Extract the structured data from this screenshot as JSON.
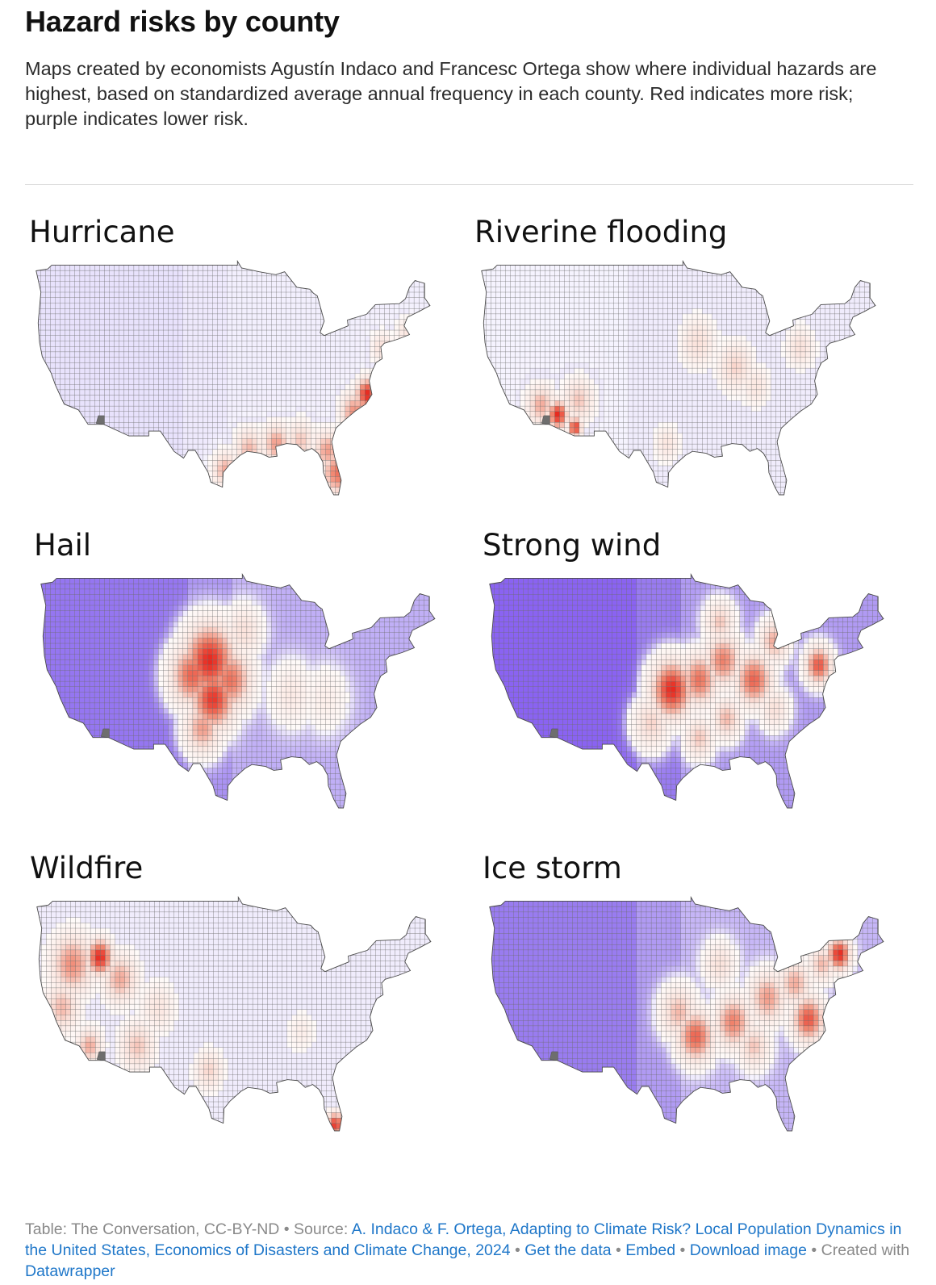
{
  "header": {
    "title": "Hazard risks by county",
    "subtitle": "Maps created by economists Agustín Indaco and Francesc Ortega show where individual hazards are highest, based on standardized average annual frequency in each county. Red indicates more risk; purple indicates lower risk."
  },
  "colors": {
    "high": "#e8281e",
    "mid_red": "#f0816a",
    "light": "#fbe3dc",
    "neutral": "#ffffff",
    "low": "#9b7ff0",
    "low_deep": "#8a63f2",
    "no_data": "#6e6e6e",
    "divider": "#dcdcdc",
    "link": "#1f77c9"
  },
  "maps": [
    {
      "title": "Hurricane",
      "base_tint": 0.12,
      "hotspots": [
        {
          "lon": -76.2,
          "lat": 35.6,
          "v": 1.0,
          "r": 1.6
        },
        {
          "lon": -78.0,
          "lat": 33.8,
          "v": 0.65,
          "r": 2.0
        },
        {
          "lon": -80.5,
          "lat": 27.5,
          "v": 0.75,
          "r": 2.2
        },
        {
          "lon": -82.0,
          "lat": 29.8,
          "v": 0.6,
          "r": 2.0
        },
        {
          "lon": -89.5,
          "lat": 30.5,
          "v": 0.6,
          "r": 2.0
        },
        {
          "lon": -93.5,
          "lat": 30.0,
          "v": 0.5,
          "r": 2.0
        },
        {
          "lon": -97.0,
          "lat": 27.8,
          "v": 0.55,
          "r": 1.8
        },
        {
          "lon": -86.0,
          "lat": 30.8,
          "v": 0.45,
          "r": 2.0
        },
        {
          "lon": -74.0,
          "lat": 40.5,
          "v": 0.35,
          "r": 1.6
        },
        {
          "lon": -70.5,
          "lat": 42.0,
          "v": 0.3,
          "r": 1.5
        }
      ]
    },
    {
      "title": "Riverine flooding",
      "base_tint": 0.05,
      "hotspots": [
        {
          "lon": -113.5,
          "lat": 33.5,
          "v": 1.0,
          "r": 1.4
        },
        {
          "lon": -111.0,
          "lat": 32.2,
          "v": 0.95,
          "r": 1.0
        },
        {
          "lon": -116.0,
          "lat": 34.5,
          "v": 0.55,
          "r": 2.0
        },
        {
          "lon": -110.5,
          "lat": 35.0,
          "v": 0.45,
          "r": 2.2
        },
        {
          "lon": -87.5,
          "lat": 38.5,
          "v": 0.4,
          "r": 2.5
        },
        {
          "lon": -93.0,
          "lat": 41.0,
          "v": 0.35,
          "r": 2.5
        },
        {
          "lon": -78.0,
          "lat": 40.5,
          "v": 0.35,
          "r": 2.0
        },
        {
          "lon": -97.5,
          "lat": 30.5,
          "v": 0.3,
          "r": 1.8
        },
        {
          "lon": -84.5,
          "lat": 36.5,
          "v": 0.3,
          "r": 2.0
        }
      ]
    },
    {
      "title": "Hail",
      "base_tint": 0.6,
      "hotspots": [
        {
          "lon": -100.0,
          "lat": 40.5,
          "v": 1.0,
          "r": 3.5
        },
        {
          "lon": -99.5,
          "lat": 36.5,
          "v": 0.95,
          "r": 3.0
        },
        {
          "lon": -102.5,
          "lat": 39.0,
          "v": 0.8,
          "r": 3.0
        },
        {
          "lon": -97.0,
          "lat": 38.5,
          "v": 0.75,
          "r": 3.0
        },
        {
          "lon": -101.0,
          "lat": 33.5,
          "v": 0.6,
          "r": 2.5
        },
        {
          "lon": -88.0,
          "lat": 37.0,
          "v": 0.25,
          "r": 3.0
        },
        {
          "lon": -83.0,
          "lat": 36.5,
          "v": 0.2,
          "r": 3.0
        },
        {
          "lon": -95.0,
          "lat": 43.5,
          "v": 0.35,
          "r": 2.5
        }
      ]
    },
    {
      "title": "Strong wind",
      "base_tint": 0.75,
      "hotspots": [
        {
          "lon": -98.0,
          "lat": 37.5,
          "v": 1.0,
          "r": 2.8
        },
        {
          "lon": -94.0,
          "lat": 38.5,
          "v": 0.75,
          "r": 2.5
        },
        {
          "lon": -90.5,
          "lat": 40.5,
          "v": 0.7,
          "r": 2.5
        },
        {
          "lon": -86.0,
          "lat": 38.5,
          "v": 0.8,
          "r": 2.5
        },
        {
          "lon": -83.0,
          "lat": 42.5,
          "v": 0.55,
          "r": 2.0
        },
        {
          "lon": -76.5,
          "lat": 40.0,
          "v": 0.85,
          "r": 1.8
        },
        {
          "lon": -90.0,
          "lat": 34.5,
          "v": 0.5,
          "r": 2.0
        },
        {
          "lon": -94.0,
          "lat": 32.5,
          "v": 0.45,
          "r": 2.0
        },
        {
          "lon": -83.0,
          "lat": 35.5,
          "v": 0.35,
          "r": 2.0
        },
        {
          "lon": -91.0,
          "lat": 44.5,
          "v": 0.45,
          "r": 2.0
        },
        {
          "lon": -101.0,
          "lat": 34.0,
          "v": 0.4,
          "r": 2.5
        }
      ]
    },
    {
      "title": "Wildfire",
      "base_tint": 0.02,
      "hotspots": [
        {
          "lon": -115.5,
          "lat": 43.2,
          "v": 1.0,
          "r": 1.8
        },
        {
          "lon": -119.5,
          "lat": 42.5,
          "v": 0.65,
          "r": 3.0
        },
        {
          "lon": -112.5,
          "lat": 41.0,
          "v": 0.55,
          "r": 2.5
        },
        {
          "lon": -121.0,
          "lat": 38.0,
          "v": 0.5,
          "r": 2.5
        },
        {
          "lon": -117.0,
          "lat": 34.0,
          "v": 0.55,
          "r": 1.8
        },
        {
          "lon": -110.0,
          "lat": 34.0,
          "v": 0.45,
          "r": 2.5
        },
        {
          "lon": -99.5,
          "lat": 31.5,
          "v": 0.4,
          "r": 2.0
        },
        {
          "lon": -81.0,
          "lat": 25.8,
          "v": 0.95,
          "r": 1.3
        },
        {
          "lon": -107.0,
          "lat": 38.0,
          "v": 0.3,
          "r": 2.5
        },
        {
          "lon": -86.0,
          "lat": 35.5,
          "v": 0.2,
          "r": 2.0
        }
      ]
    },
    {
      "title": "Ice storm",
      "base_tint": 0.55,
      "hotspots": [
        {
          "lon": -73.5,
          "lat": 43.5,
          "v": 1.0,
          "r": 1.6
        },
        {
          "lon": -78.0,
          "lat": 36.8,
          "v": 0.85,
          "r": 2.2
        },
        {
          "lon": -94.5,
          "lat": 35.0,
          "v": 0.8,
          "r": 2.5
        },
        {
          "lon": -89.0,
          "lat": 36.5,
          "v": 0.7,
          "r": 2.5
        },
        {
          "lon": -84.0,
          "lat": 39.0,
          "v": 0.6,
          "r": 2.5
        },
        {
          "lon": -80.0,
          "lat": 40.5,
          "v": 0.55,
          "r": 2.2
        },
        {
          "lon": -97.0,
          "lat": 37.5,
          "v": 0.5,
          "r": 2.5
        },
        {
          "lon": -86.0,
          "lat": 34.0,
          "v": 0.45,
          "r": 2.2
        },
        {
          "lon": -76.0,
          "lat": 42.5,
          "v": 0.5,
          "r": 1.8
        },
        {
          "lon": -91.0,
          "lat": 42.5,
          "v": 0.35,
          "r": 2.2
        }
      ]
    }
  ],
  "footer": {
    "prefix": "Table: The Conversation, CC-BY-ND • Source: ",
    "source_link": "A. Indaco & F. Ortega, Adapting to Climate Risk? Local Population Dynamics in the United States, Economics of Disasters and Climate Change, 2024",
    "sep1": " • ",
    "get_data": "Get the data",
    "sep2": " • ",
    "embed": "Embed",
    "sep3": "  • ",
    "download": "Download image",
    "created": " • Created with ",
    "datawrapper": "Datawrapper"
  }
}
